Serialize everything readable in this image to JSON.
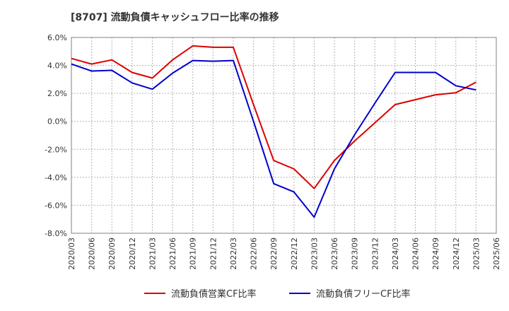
{
  "chart_data": {
    "type": "line",
    "title": "[8707]  流動負債キャッシュフロー比率の推移",
    "xlabel": "",
    "ylabel": "",
    "ylim": [
      -8,
      6
    ],
    "yticks": [
      6,
      4,
      2,
      0,
      -2,
      -4,
      -6,
      -8
    ],
    "ytick_labels": [
      "6.0%",
      "4.0%",
      "2.0%",
      "0.0%",
      "-2.0%",
      "-4.0%",
      "-6.0%",
      "-8.0%"
    ],
    "categories": [
      "2020/03",
      "2020/06",
      "2020/09",
      "2020/12",
      "2021/03",
      "2021/06",
      "2021/09",
      "2021/12",
      "2022/03",
      "2022/06",
      "2022/09",
      "2022/12",
      "2023/03",
      "2023/06",
      "2023/09",
      "2023/12",
      "2024/03",
      "2024/06",
      "2024/09",
      "2024/12",
      "2025/03",
      "2025/06"
    ],
    "grid": true,
    "legend_position": "bottom",
    "series": [
      {
        "name": "流動負債営業CF比率",
        "color": "#dd0000",
        "values": [
          4.5,
          4.1,
          4.4,
          3.5,
          3.1,
          4.4,
          5.4,
          5.3,
          5.3,
          1.2,
          -2.8,
          -3.4,
          -4.8,
          -2.8,
          -1.4,
          -0.1,
          1.2,
          1.55,
          1.9,
          2.05,
          2.8,
          null
        ]
      },
      {
        "name": "流動負債フリーCF比率",
        "color": "#0000cc",
        "values": [
          4.1,
          3.6,
          3.65,
          2.75,
          2.3,
          3.45,
          4.35,
          4.3,
          4.35,
          0.0,
          -4.45,
          -5.05,
          -6.85,
          -3.4,
          -0.95,
          1.3,
          3.5,
          3.5,
          3.5,
          2.55,
          2.25,
          null
        ]
      }
    ]
  }
}
